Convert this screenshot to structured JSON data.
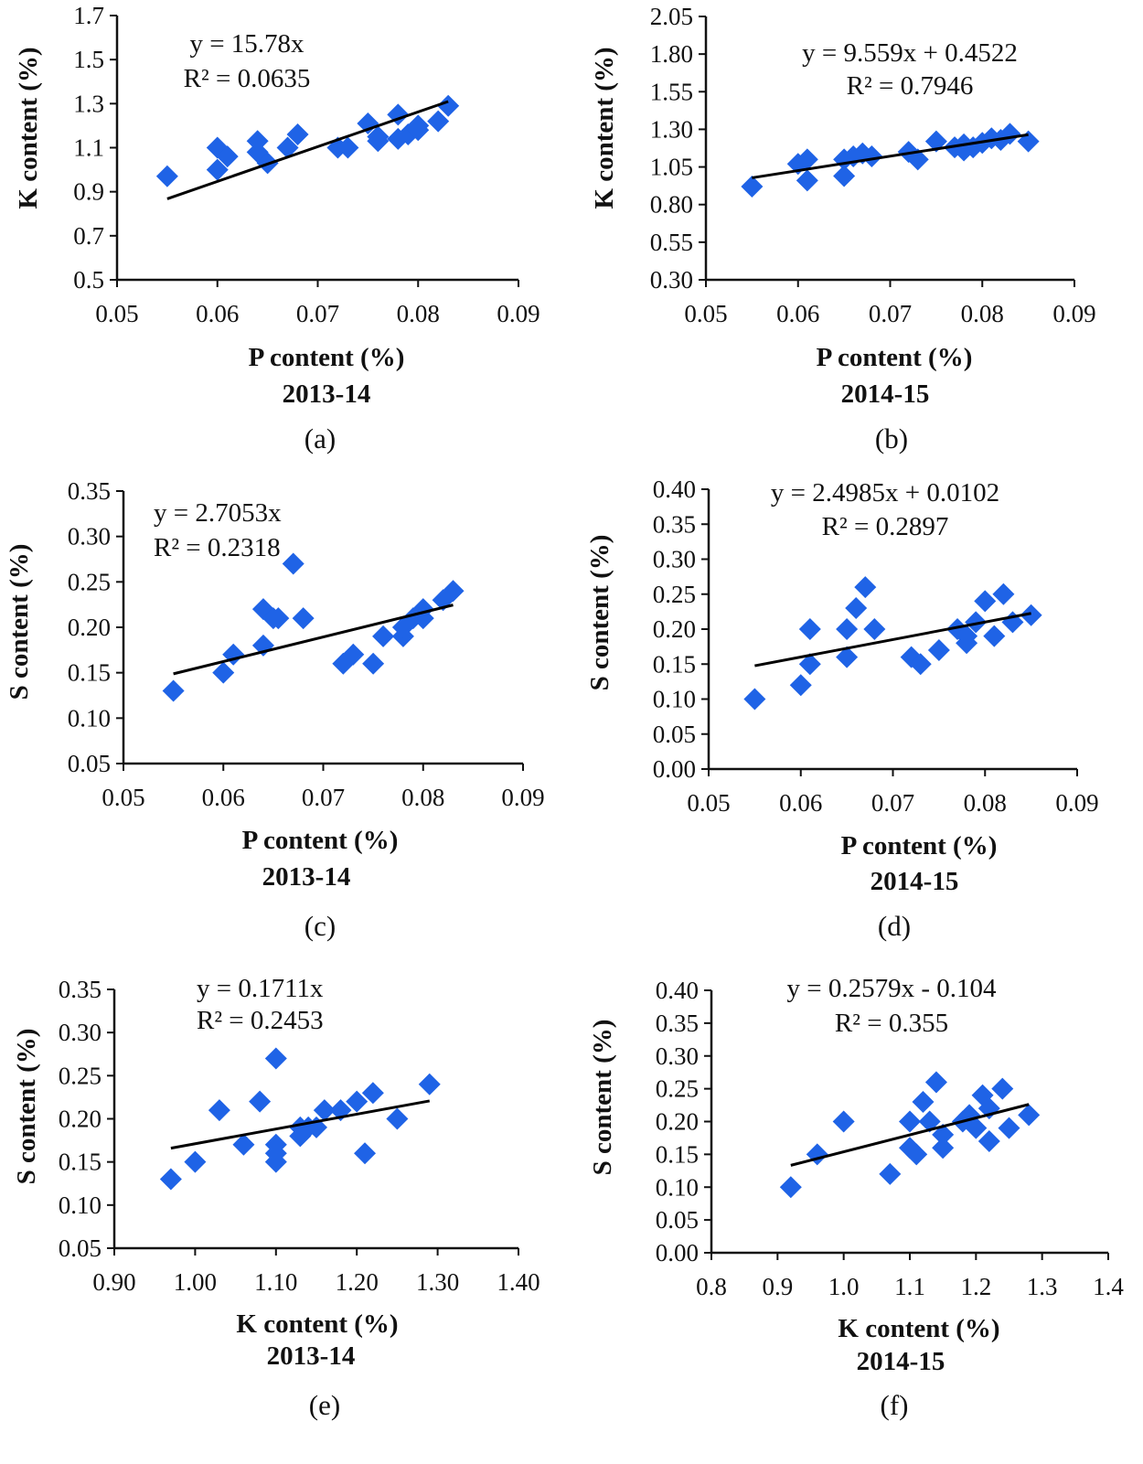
{
  "chart_data": [
    {
      "id": "a",
      "type": "scatter",
      "caption": "(a)",
      "year": "2013-14",
      "xlabel": "P content (%)",
      "ylabel": "K content (%)",
      "xlim": [
        0.05,
        0.09
      ],
      "xticks": [
        "0.05",
        "0.06",
        "0.07",
        "0.08",
        "0.09"
      ],
      "ylim": [
        0.5,
        1.7
      ],
      "yticks": [
        "0.5",
        "0.7",
        "0.9",
        "1.1",
        "1.3",
        "1.5",
        "1.7"
      ],
      "equation": "y = 15.78x",
      "r2": "R² = 0.0635",
      "trend": {
        "slope": 15.78,
        "intercept": 0,
        "x": [
          0.055,
          0.083
        ]
      },
      "points": [
        [
          0.055,
          0.97
        ],
        [
          0.06,
          1.1
        ],
        [
          0.06,
          1.0
        ],
        [
          0.061,
          1.06
        ],
        [
          0.064,
          1.13
        ],
        [
          0.064,
          1.08
        ],
        [
          0.065,
          1.03
        ],
        [
          0.067,
          1.1
        ],
        [
          0.068,
          1.16
        ],
        [
          0.072,
          1.1
        ],
        [
          0.073,
          1.1
        ],
        [
          0.075,
          1.21
        ],
        [
          0.076,
          1.15
        ],
        [
          0.076,
          1.13
        ],
        [
          0.078,
          1.25
        ],
        [
          0.078,
          1.14
        ],
        [
          0.079,
          1.16
        ],
        [
          0.08,
          1.18
        ],
        [
          0.08,
          1.2
        ],
        [
          0.082,
          1.22
        ],
        [
          0.083,
          1.29
        ]
      ]
    },
    {
      "id": "b",
      "type": "scatter",
      "caption": "(b)",
      "year": "2014-15",
      "xlabel": "P content (%)",
      "ylabel": "K content (%)",
      "xlim": [
        0.05,
        0.09
      ],
      "xticks": [
        "0.05",
        "0.06",
        "0.07",
        "0.08",
        "0.09"
      ],
      "ylim": [
        0.3,
        2.05
      ],
      "yticks": [
        "0.30",
        "0.55",
        "0.80",
        "1.05",
        "1.30",
        "1.55",
        "1.80",
        "2.05"
      ],
      "equation": "y = 9.559x + 0.4522",
      "r2": "R² = 0.7946",
      "trend": {
        "slope": 9.559,
        "intercept": 0.4522,
        "x": [
          0.055,
          0.085
        ]
      },
      "points": [
        [
          0.055,
          0.92
        ],
        [
          0.06,
          1.07
        ],
        [
          0.061,
          1.1
        ],
        [
          0.061,
          0.96
        ],
        [
          0.065,
          0.99
        ],
        [
          0.065,
          1.1
        ],
        [
          0.066,
          1.12
        ],
        [
          0.067,
          1.14
        ],
        [
          0.068,
          1.12
        ],
        [
          0.072,
          1.15
        ],
        [
          0.073,
          1.1
        ],
        [
          0.075,
          1.22
        ],
        [
          0.077,
          1.18
        ],
        [
          0.078,
          1.16
        ],
        [
          0.078,
          1.2
        ],
        [
          0.079,
          1.18
        ],
        [
          0.08,
          1.21
        ],
        [
          0.081,
          1.24
        ],
        [
          0.082,
          1.23
        ],
        [
          0.083,
          1.27
        ],
        [
          0.085,
          1.22
        ]
      ]
    },
    {
      "id": "c",
      "type": "scatter",
      "caption": "(c)",
      "year": "2013-14",
      "xlabel": "P content (%)",
      "ylabel": "S content (%)",
      "xlim": [
        0.05,
        0.09
      ],
      "xticks": [
        "0.05",
        "0.06",
        "0.07",
        "0.08",
        "0.09"
      ],
      "ylim": [
        0.05,
        0.35
      ],
      "yticks": [
        "0.05",
        "0.10",
        "0.15",
        "0.20",
        "0.25",
        "0.30",
        "0.35"
      ],
      "equation": "y = 2.7053x",
      "r2": "R² = 0.2318",
      "trend": {
        "slope": 2.7053,
        "intercept": 0,
        "x": [
          0.055,
          0.083
        ]
      },
      "points": [
        [
          0.055,
          0.13
        ],
        [
          0.06,
          0.15
        ],
        [
          0.061,
          0.17
        ],
        [
          0.064,
          0.18
        ],
        [
          0.064,
          0.22
        ],
        [
          0.065,
          0.21
        ],
        [
          0.0655,
          0.21
        ],
        [
          0.067,
          0.27
        ],
        [
          0.068,
          0.21
        ],
        [
          0.072,
          0.16
        ],
        [
          0.073,
          0.17
        ],
        [
          0.075,
          0.16
        ],
        [
          0.076,
          0.19
        ],
        [
          0.078,
          0.19
        ],
        [
          0.078,
          0.2
        ],
        [
          0.079,
          0.21
        ],
        [
          0.08,
          0.22
        ],
        [
          0.08,
          0.21
        ],
        [
          0.082,
          0.23
        ],
        [
          0.083,
          0.24
        ]
      ]
    },
    {
      "id": "d",
      "type": "scatter",
      "caption": "(d)",
      "year": "2014-15",
      "xlabel": "P content (%)",
      "ylabel": "S content (%)",
      "xlim": [
        0.05,
        0.09
      ],
      "xticks": [
        "0.05",
        "0.06",
        "0.07",
        "0.08",
        "0.09"
      ],
      "ylim": [
        0,
        0.4
      ],
      "yticks": [
        "0.00",
        "0.05",
        "0.10",
        "0.15",
        "0.20",
        "0.25",
        "0.30",
        "0.35",
        "0.40"
      ],
      "equation": "y = 2.4985x + 0.0102",
      "r2": "R² = 0.2897",
      "trend": {
        "slope": 2.4985,
        "intercept": 0.0102,
        "x": [
          0.055,
          0.085
        ]
      },
      "points": [
        [
          0.055,
          0.1
        ],
        [
          0.06,
          0.12
        ],
        [
          0.061,
          0.15
        ],
        [
          0.061,
          0.2
        ],
        [
          0.065,
          0.16
        ],
        [
          0.065,
          0.2
        ],
        [
          0.066,
          0.23
        ],
        [
          0.067,
          0.26
        ],
        [
          0.068,
          0.2
        ],
        [
          0.072,
          0.16
        ],
        [
          0.073,
          0.15
        ],
        [
          0.075,
          0.17
        ],
        [
          0.077,
          0.2
        ],
        [
          0.078,
          0.19
        ],
        [
          0.078,
          0.18
        ],
        [
          0.079,
          0.21
        ],
        [
          0.08,
          0.24
        ],
        [
          0.081,
          0.19
        ],
        [
          0.082,
          0.25
        ],
        [
          0.083,
          0.21
        ],
        [
          0.085,
          0.22
        ]
      ]
    },
    {
      "id": "e",
      "type": "scatter",
      "caption": "(e)",
      "year": "2013-14",
      "xlabel": "K content (%)",
      "ylabel": "S content (%)",
      "xlim": [
        0.9,
        1.4
      ],
      "xticks": [
        "0.90",
        "1.00",
        "1.10",
        "1.20",
        "1.30",
        "1.40"
      ],
      "ylim": [
        0.05,
        0.35
      ],
      "yticks": [
        "0.05",
        "0.10",
        "0.15",
        "0.20",
        "0.25",
        "0.30",
        "0.35"
      ],
      "equation": "y = 0.1711x",
      "r2": "R² = 0.2453",
      "trend": {
        "slope": 0.1711,
        "intercept": 0,
        "x": [
          0.97,
          1.29
        ]
      },
      "points": [
        [
          0.97,
          0.13
        ],
        [
          1.0,
          0.15
        ],
        [
          1.03,
          0.21
        ],
        [
          1.06,
          0.17
        ],
        [
          1.08,
          0.22
        ],
        [
          1.1,
          0.27
        ],
        [
          1.1,
          0.17
        ],
        [
          1.1,
          0.16
        ],
        [
          1.1,
          0.15
        ],
        [
          1.13,
          0.18
        ],
        [
          1.13,
          0.19
        ],
        [
          1.14,
          0.19
        ],
        [
          1.15,
          0.19
        ],
        [
          1.16,
          0.21
        ],
        [
          1.18,
          0.21
        ],
        [
          1.2,
          0.22
        ],
        [
          1.21,
          0.16
        ],
        [
          1.22,
          0.23
        ],
        [
          1.25,
          0.2
        ],
        [
          1.29,
          0.24
        ]
      ]
    },
    {
      "id": "f",
      "type": "scatter",
      "caption": "(f)",
      "year": "2014-15",
      "xlabel": "K content (%)",
      "ylabel": "S content (%)",
      "xlim": [
        0.8,
        1.4
      ],
      "xticks": [
        "0.8",
        "0.9",
        "1.0",
        "1.1",
        "1.2",
        "1.3",
        "1.4"
      ],
      "ylim": [
        0,
        0.4
      ],
      "yticks": [
        "0.00",
        "0.05",
        "0.10",
        "0.15",
        "0.20",
        "0.25",
        "0.30",
        "0.35",
        "0.40"
      ],
      "equation": "y = 0.2579x - 0.104",
      "r2": "R² = 0.355",
      "trend": {
        "slope": 0.2579,
        "intercept": -0.104,
        "x": [
          0.92,
          1.28
        ]
      },
      "points": [
        [
          0.92,
          0.1
        ],
        [
          0.96,
          0.15
        ],
        [
          1.0,
          0.2
        ],
        [
          1.07,
          0.12
        ],
        [
          1.1,
          0.2
        ],
        [
          1.1,
          0.16
        ],
        [
          1.11,
          0.15
        ],
        [
          1.12,
          0.23
        ],
        [
          1.13,
          0.2
        ],
        [
          1.14,
          0.26
        ],
        [
          1.15,
          0.16
        ],
        [
          1.15,
          0.18
        ],
        [
          1.18,
          0.2
        ],
        [
          1.19,
          0.21
        ],
        [
          1.2,
          0.19
        ],
        [
          1.21,
          0.24
        ],
        [
          1.22,
          0.22
        ],
        [
          1.22,
          0.17
        ],
        [
          1.24,
          0.25
        ],
        [
          1.25,
          0.19
        ],
        [
          1.28,
          0.21
        ]
      ]
    }
  ],
  "colors": {
    "marker": "#1f63e6",
    "trend": "#000000",
    "axis": "#111111"
  }
}
